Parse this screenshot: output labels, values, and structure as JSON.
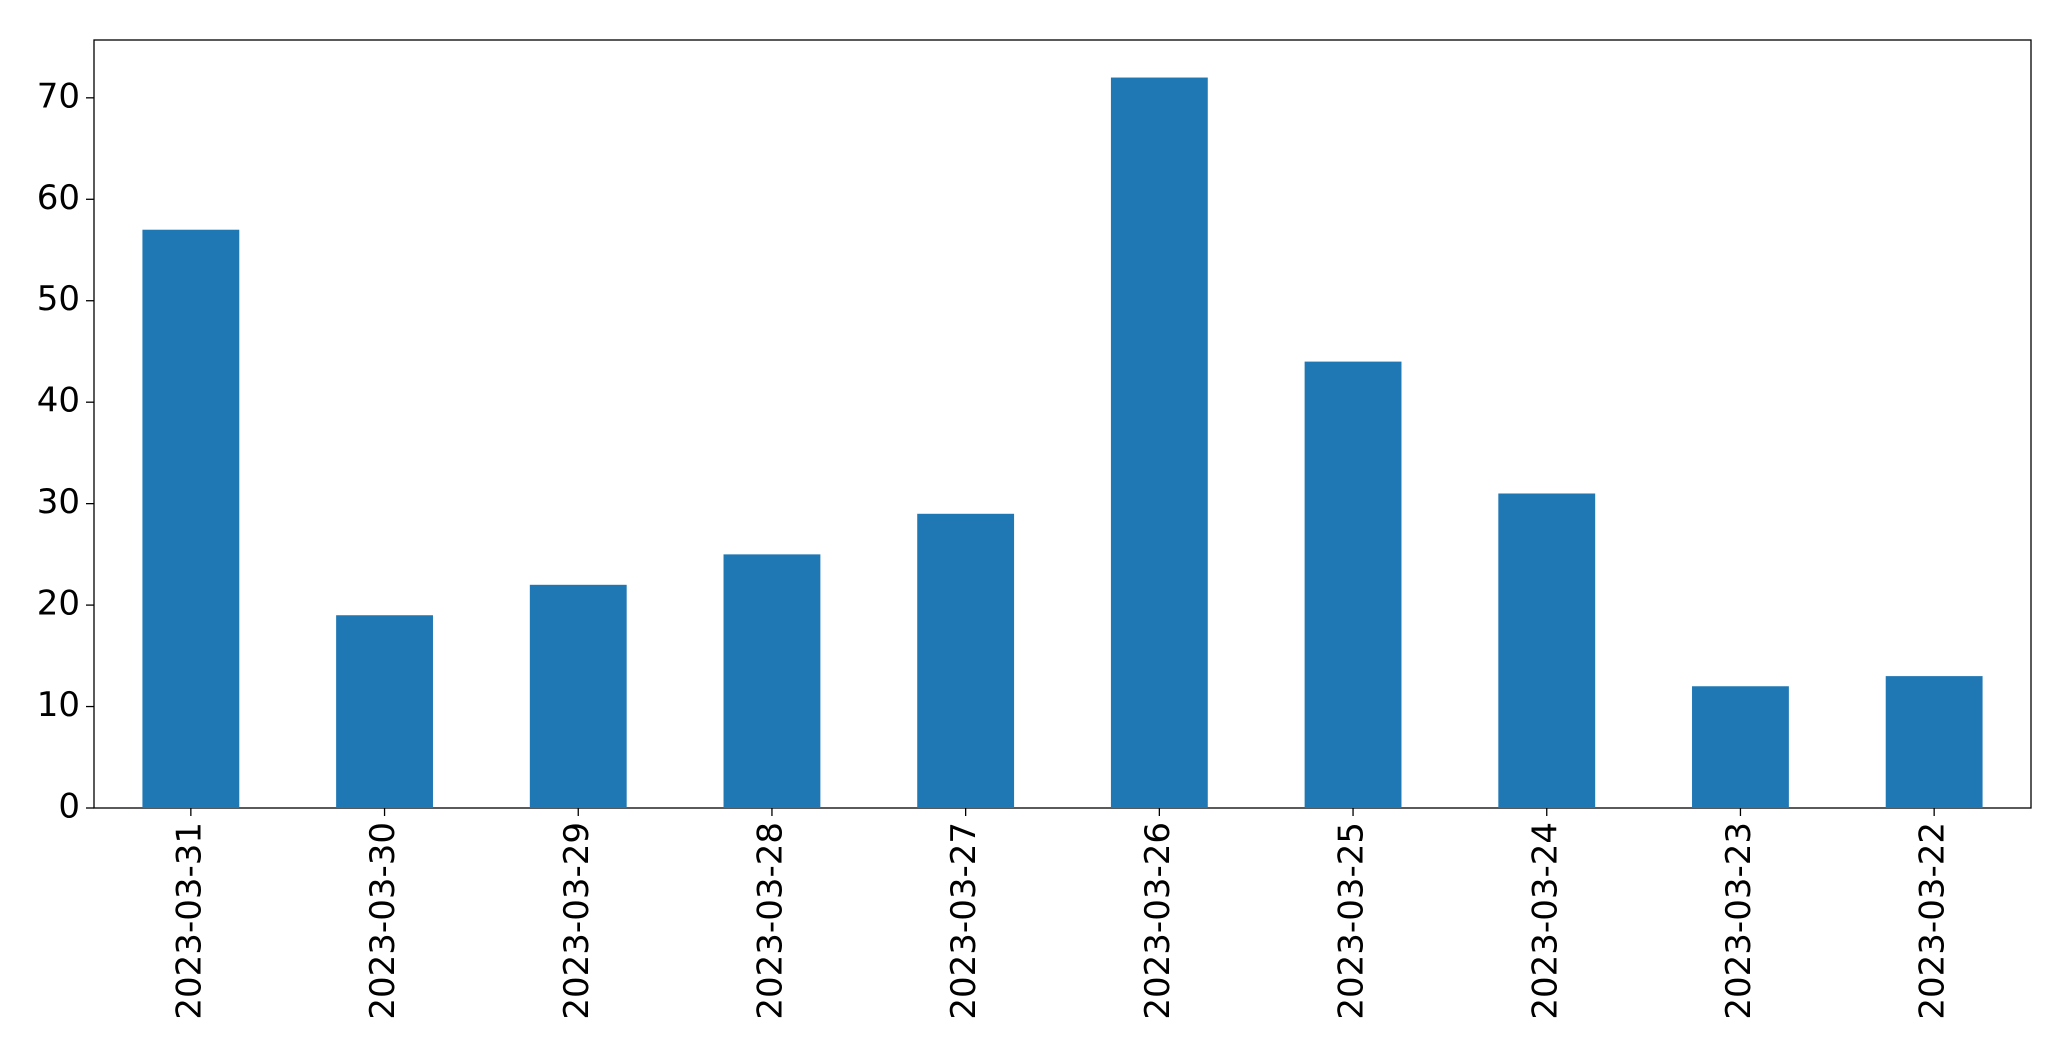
{
  "chart_data": {
    "type": "bar",
    "categories": [
      "2023-03-31",
      "2023-03-30",
      "2023-03-29",
      "2023-03-28",
      "2023-03-27",
      "2023-03-26",
      "2023-03-25",
      "2023-03-24",
      "2023-03-23",
      "2023-03-22"
    ],
    "values": [
      57,
      19,
      22,
      25,
      29,
      72,
      44,
      31,
      12,
      13
    ],
    "color": "#1f77b4",
    "ylim": [
      0,
      75.7
    ],
    "yticks": [
      0,
      10,
      20,
      30,
      40,
      50,
      60,
      70
    ],
    "grid": false
  }
}
